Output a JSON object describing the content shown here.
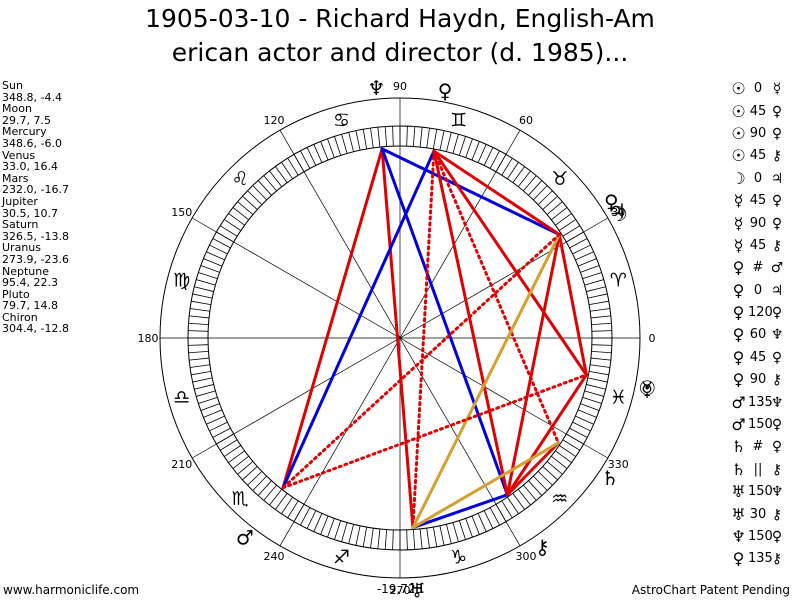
{
  "title": {
    "line1": "1905-03-10 - Richard Haydn, English-Am",
    "line2": "erican actor and director (d. 1985)..."
  },
  "planet_positions": [
    {
      "name": "Sun",
      "value": "348.8, -4.4"
    },
    {
      "name": "Moon",
      "value": "29.7, 7.5"
    },
    {
      "name": "Mercury",
      "value": "348.6, -6.0"
    },
    {
      "name": "Venus",
      "value": "33.0, 16.4"
    },
    {
      "name": "Mars",
      "value": "232.0, -16.7"
    },
    {
      "name": "Jupiter",
      "value": "30.5, 10.7"
    },
    {
      "name": "Saturn",
      "value": "326.5, -13.8"
    },
    {
      "name": "Uranus",
      "value": "273.9, -23.6"
    },
    {
      "name": "Neptune",
      "value": "95.4, 22.3"
    },
    {
      "name": "Pluto",
      "value": "79.7, 14.8"
    },
    {
      "name": "Chiron",
      "value": "304.4, -12.8"
    }
  ],
  "aspects": [
    {
      "p1": "☉",
      "angle": "0",
      "p2": "☿",
      "color": "#000000"
    },
    {
      "p1": "☉",
      "angle": "45",
      "p2": "♀",
      "color": "#000000"
    },
    {
      "p1": "☉",
      "angle": "90",
      "p2": "♀",
      "color": "#000000"
    },
    {
      "p1": "☉",
      "angle": "45",
      "p2": "⚷",
      "color": "#000000"
    },
    {
      "p1": "☽",
      "angle": "0",
      "p2": "♃",
      "color": "#000000"
    },
    {
      "p1": "☿",
      "angle": "45",
      "p2": "♀",
      "color": "#000000"
    },
    {
      "p1": "☿",
      "angle": "90",
      "p2": "♀",
      "color": "#000000"
    },
    {
      "p1": "☿",
      "angle": "45",
      "p2": "⚷",
      "color": "#000000"
    },
    {
      "p1": "♀",
      "angle": "#",
      "p2": "♂",
      "color": "#000000"
    },
    {
      "p1": "♀",
      "angle": "0",
      "p2": "♃",
      "color": "#000000"
    },
    {
      "p1": "♀",
      "angle": "120",
      "p2": "♀",
      "color": "#000000"
    },
    {
      "p1": "♀",
      "angle": "60",
      "p2": "♆",
      "color": "#000000"
    },
    {
      "p1": "♀",
      "angle": "45",
      "p2": "♀",
      "color": "#000000"
    },
    {
      "p1": "♀",
      "angle": "90",
      "p2": "⚷",
      "color": "#000000"
    },
    {
      "p1": "♂",
      "angle": "135",
      "p2": "♆",
      "color": "#000000"
    },
    {
      "p1": "♂",
      "angle": "150",
      "p2": "♀",
      "color": "#000000"
    },
    {
      "p1": "♄",
      "angle": "#",
      "p2": "♀",
      "color": "#000000"
    },
    {
      "p1": "♄",
      "angle": "||",
      "p2": "⚷",
      "color": "#000000"
    },
    {
      "p1": "♅",
      "angle": "150",
      "p2": "♆",
      "color": "#000000"
    },
    {
      "p1": "♅",
      "angle": "30",
      "p2": "⚷",
      "color": "#000000"
    },
    {
      "p1": "♆",
      "angle": "150",
      "p2": "♀",
      "color": "#000000"
    },
    {
      "p1": "♀",
      "angle": "135",
      "p2": "⚷",
      "color": "#000000"
    }
  ],
  "degree_labels": [
    "0",
    "30",
    "60",
    "90",
    "120",
    "150",
    "180",
    "210",
    "240",
    "270",
    "300",
    "330"
  ],
  "zodiac_glyphs": [
    "♈",
    "♉",
    "♊",
    "♋",
    "♌",
    "♍",
    "♎",
    "♏",
    "♐",
    "♑",
    "♒",
    "♓"
  ],
  "planets": [
    {
      "name": "sun",
      "glyph": "☉",
      "lon": 348.8
    },
    {
      "name": "moon",
      "glyph": "☽",
      "lon": 29.7
    },
    {
      "name": "mercury",
      "glyph": "☿",
      "lon": 348.6
    },
    {
      "name": "venus",
      "glyph": "♀",
      "lon": 33.0
    },
    {
      "name": "mars",
      "glyph": "♂",
      "lon": 232.0
    },
    {
      "name": "jupiter",
      "glyph": "♃",
      "lon": 30.5
    },
    {
      "name": "saturn",
      "glyph": "♄",
      "lon": 326.5
    },
    {
      "name": "uranus",
      "glyph": "♅",
      "lon": 273.9
    },
    {
      "name": "neptune",
      "glyph": "♆",
      "lon": 95.4
    },
    {
      "name": "pluto",
      "glyph": "♀",
      "lon": 79.7
    },
    {
      "name": "chiron",
      "glyph": "⚷",
      "lon": 304.4
    }
  ],
  "aspect_lines": [
    {
      "from": "neptune",
      "to": "mars",
      "color": "#e00000",
      "style": "solid"
    },
    {
      "from": "neptune",
      "to": "uranus",
      "color": "#e00000",
      "style": "solid"
    },
    {
      "from": "neptune",
      "to": "chiron",
      "color": "#0000e0",
      "style": "solid"
    },
    {
      "from": "neptune",
      "to": "venus",
      "color": "#0000e0",
      "style": "solid"
    },
    {
      "from": "pluto",
      "to": "mars",
      "color": "#0000e0",
      "style": "solid"
    },
    {
      "from": "pluto",
      "to": "venus",
      "color": "#e00000",
      "style": "solid"
    },
    {
      "from": "pluto",
      "to": "sun",
      "color": "#e00000",
      "style": "solid"
    },
    {
      "from": "pluto",
      "to": "chiron",
      "color": "#e00000",
      "style": "solid"
    },
    {
      "from": "pluto",
      "to": "saturn",
      "color": "#e00000",
      "style": "dotted"
    },
    {
      "from": "pluto",
      "to": "uranus",
      "color": "#e00000",
      "style": "dotted"
    },
    {
      "from": "venus",
      "to": "sun",
      "color": "#e00000",
      "style": "solid"
    },
    {
      "from": "venus",
      "to": "chiron",
      "color": "#e00000",
      "style": "solid"
    },
    {
      "from": "venus",
      "to": "uranus",
      "color": "#d4a030",
      "style": "solid"
    },
    {
      "from": "venus",
      "to": "mars",
      "color": "#e00000",
      "style": "dotted"
    },
    {
      "from": "chiron",
      "to": "sun",
      "color": "#e00000",
      "style": "solid"
    },
    {
      "from": "chiron",
      "to": "uranus",
      "color": "#0000e0",
      "style": "solid"
    },
    {
      "from": "chiron",
      "to": "saturn",
      "color": "#e00000",
      "style": "solid"
    },
    {
      "from": "mars",
      "to": "sun",
      "color": "#e00000",
      "style": "dotted"
    },
    {
      "from": "uranus",
      "to": "saturn",
      "color": "#d4a030",
      "style": "solid"
    }
  ],
  "bottom_value": "-19,723",
  "footer": {
    "left": "www.harmoniclife.com",
    "right": "AstroChart Patent Pending"
  }
}
